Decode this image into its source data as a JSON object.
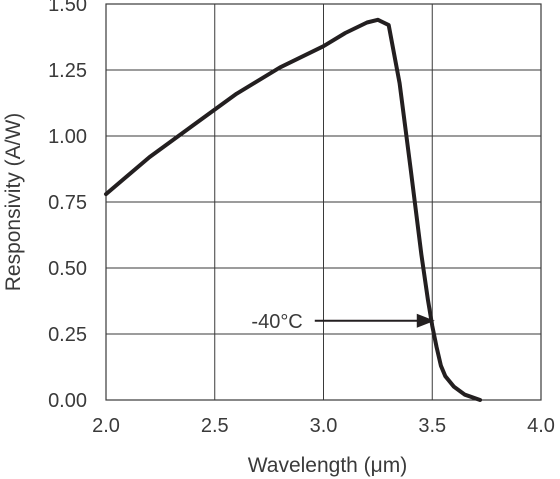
{
  "chart_data": {
    "type": "line",
    "title": "",
    "xlabel": "Wavelength (μm)",
    "ylabel": "Responsivity (A/W)",
    "xlim": [
      2.0,
      4.0
    ],
    "ylim": [
      0.0,
      1.5
    ],
    "grid": true,
    "x_ticks": [
      "2.0",
      "2.5",
      "3.0",
      "3.5",
      "4.0"
    ],
    "y_ticks": [
      "0.00",
      "0.25",
      "0.50",
      "0.75",
      "1.00",
      "1.25",
      "1.50"
    ],
    "series": [
      {
        "x": [
          2.0,
          2.2,
          2.4,
          2.6,
          2.8,
          3.0,
          3.1,
          3.2,
          3.25,
          3.3,
          3.35,
          3.4,
          3.45,
          3.48,
          3.5,
          3.52,
          3.54,
          3.56,
          3.6,
          3.65,
          3.72
        ],
        "y": [
          0.78,
          0.92,
          1.04,
          1.16,
          1.26,
          1.34,
          1.39,
          1.43,
          1.44,
          1.42,
          1.2,
          0.88,
          0.55,
          0.38,
          0.28,
          0.2,
          0.13,
          0.09,
          0.05,
          0.02,
          0.0
        ]
      }
    ],
    "annotations": [
      {
        "text": "-40°C",
        "x": 3.53,
        "y": 0.3
      }
    ]
  }
}
